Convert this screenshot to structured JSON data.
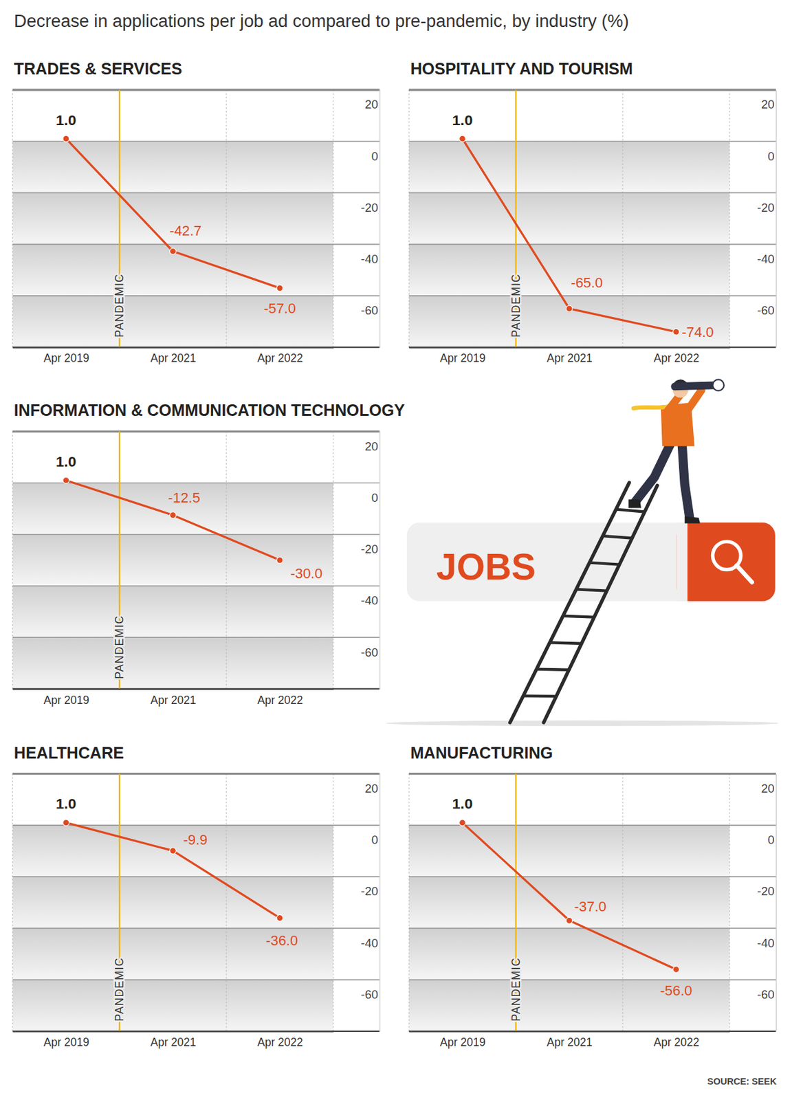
{
  "title": "Decrease in applications per job ad compared to pre-pandemic, by industry (%)",
  "source": "SOURCE: SEEK",
  "illustration_text": "JOBS",
  "chart_data": [
    {
      "type": "line",
      "title": "TRADES & SERVICES",
      "categories": [
        "Apr 2019",
        "Apr 2021",
        "Apr 2022"
      ],
      "values": [
        1,
        -42.7,
        -57
      ],
      "value_labels": [
        "1.0",
        "-42.7",
        "-57.0"
      ],
      "color": "#e04a1f",
      "marker": "circle",
      "ylim": [
        -80,
        20
      ],
      "yticks": [
        20,
        0,
        -20,
        -40,
        -60
      ],
      "grid": true,
      "data_labels": true,
      "annotations": [
        "PANDEMIC"
      ]
    },
    {
      "type": "line",
      "title": "HOSPITALITY AND TOURISM",
      "categories": [
        "Apr 2019",
        "Apr 2021",
        "Apr 2022"
      ],
      "values": [
        1,
        -65,
        -74
      ],
      "value_labels": [
        "1.0",
        "-65.0",
        "-74.0"
      ],
      "color": "#e04a1f",
      "marker": "circle",
      "ylim": [
        -80,
        20
      ],
      "yticks": [
        20,
        0,
        -20,
        -40,
        -60
      ],
      "grid": true,
      "data_labels": true,
      "annotations": [
        "PANDEMIC"
      ]
    },
    {
      "type": "line",
      "title": "INFORMATION & COMMUNICATION TECHNOLOGY",
      "categories": [
        "Apr 2019",
        "Apr 2021",
        "Apr 2022"
      ],
      "values": [
        1,
        -12.5,
        -30
      ],
      "value_labels": [
        "1.0",
        "-12.5",
        "-30.0"
      ],
      "color": "#e04a1f",
      "marker": "circle",
      "ylim": [
        -80,
        20
      ],
      "yticks": [
        20,
        0,
        -20,
        -40,
        -60
      ],
      "grid": true,
      "data_labels": true,
      "annotations": [
        "PANDEMIC"
      ]
    },
    {
      "type": "line",
      "title": "HEALTHCARE",
      "categories": [
        "Apr 2019",
        "Apr 2021",
        "Apr 2022"
      ],
      "values": [
        1,
        -9.9,
        -36
      ],
      "value_labels": [
        "1.0",
        "-9.9",
        "-36.0"
      ],
      "color": "#e04a1f",
      "marker": "circle",
      "ylim": [
        -80,
        20
      ],
      "yticks": [
        20,
        0,
        -20,
        -40,
        -60
      ],
      "grid": true,
      "data_labels": true,
      "annotations": [
        "PANDEMIC"
      ]
    },
    {
      "type": "line",
      "title": "MANUFACTURING",
      "categories": [
        "Apr 2019",
        "Apr 2021",
        "Apr 2022"
      ],
      "values": [
        1,
        -37,
        -56
      ],
      "value_labels": [
        "1.0",
        "-37.0",
        "-56.0"
      ],
      "color": "#e04a1f",
      "marker": "circle",
      "ylim": [
        -80,
        20
      ],
      "yticks": [
        20,
        0,
        -20,
        -40,
        -60
      ],
      "grid": true,
      "data_labels": true,
      "annotations": [
        "PANDEMIC"
      ]
    }
  ]
}
